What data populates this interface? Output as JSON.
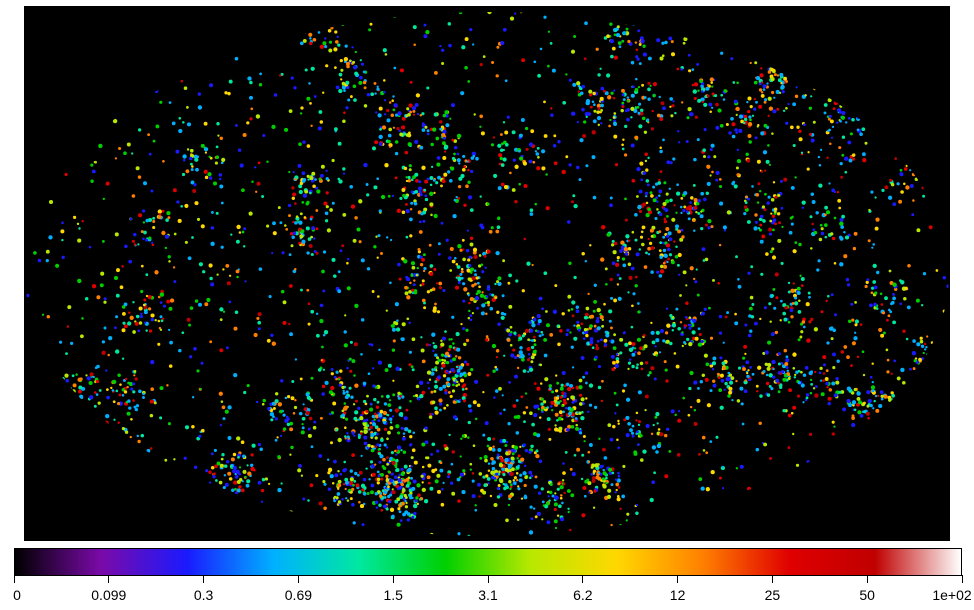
{
  "map": {
    "projection": "mollweide-style ellipse",
    "background_color": "#000000",
    "content": "all-sky density map of points and filaments"
  },
  "colorbar": {
    "scale": "log",
    "tick_labels": [
      "0",
      "0.099",
      "0.3",
      "0.69",
      "1.5",
      "3.1",
      "6.2",
      "12",
      "25",
      "50",
      "1e+02"
    ],
    "colormap_stops": [
      "#000000",
      "#7a0aa8",
      "#1a1aff",
      "#00b0ff",
      "#00e8a0",
      "#00d000",
      "#b8e800",
      "#ffd800",
      "#ff8000",
      "#e00000",
      "#c00000",
      "#ffffff"
    ]
  }
}
